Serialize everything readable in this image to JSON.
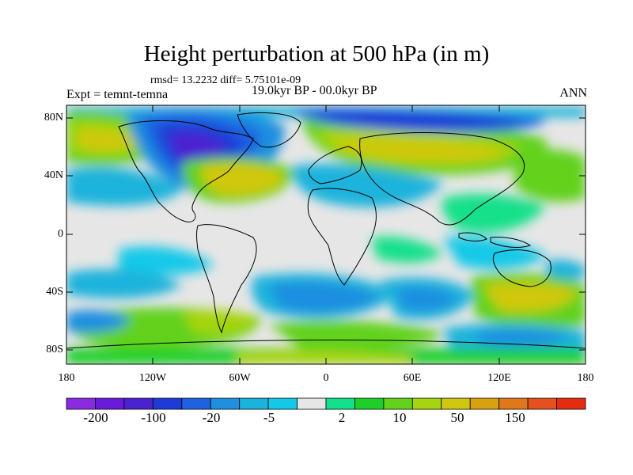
{
  "title": "Height perturbation at 500 hPa (in m)",
  "stats_line": "rmsd= 13.2232 diff= 5.75101e-09",
  "experiment": "Expt = temnt-temna",
  "period": "19.0kyr BP - 00.0kyr BP",
  "season": "ANN",
  "lat_ticks": [
    "80N",
    "40N",
    "0",
    "40S",
    "80S"
  ],
  "lon_ticks": [
    "180",
    "120W",
    "60W",
    "0",
    "60E",
    "120E",
    "180"
  ],
  "colorbar": {
    "colors": [
      "#8a2be2",
      "#6a1bd9",
      "#4b22d0",
      "#1d3bd6",
      "#1f61e0",
      "#1f8fe0",
      "#1ab3dc",
      "#13c9e8",
      "#e6e6e6",
      "#13e08a",
      "#1ecf2a",
      "#62d21c",
      "#a6d40f",
      "#d0c810",
      "#d8a20e",
      "#e0781a",
      "#e6501e",
      "#e62b10"
    ],
    "labels": [
      "-200",
      "-100",
      "-20",
      "-5",
      "2",
      "10",
      "50",
      "150"
    ]
  }
}
